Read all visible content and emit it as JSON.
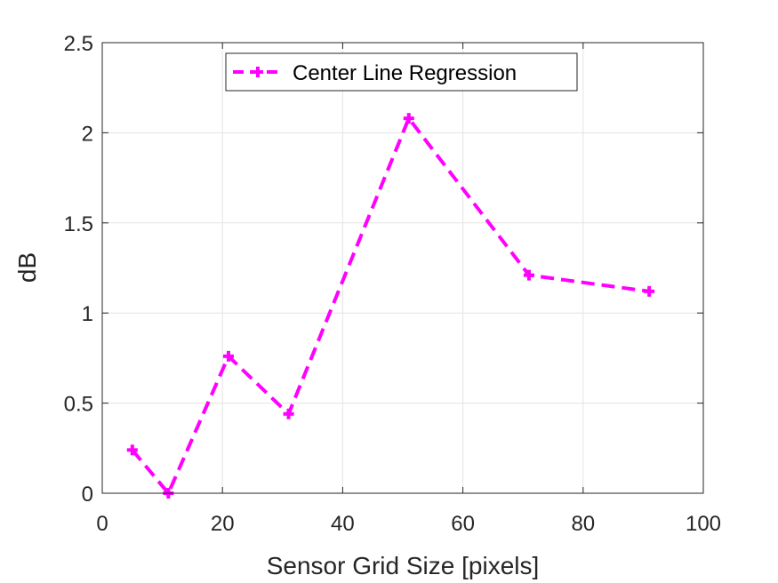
{
  "chart_data": {
    "type": "line",
    "title": "",
    "xlabel": "Sensor Grid Size [pixels]",
    "ylabel": "dB",
    "xlim": [
      0,
      100
    ],
    "ylim": [
      0,
      2.5
    ],
    "xticks": [
      0,
      20,
      40,
      60,
      80,
      100
    ],
    "yticks": [
      0,
      0.5,
      1,
      1.5,
      2,
      2.5
    ],
    "xtick_labels": [
      "0",
      "20",
      "40",
      "60",
      "80",
      "100"
    ],
    "ytick_labels": [
      "0",
      "0.5",
      "1",
      "1.5",
      "2",
      "2.5"
    ],
    "grid": true,
    "legend_position": "top-center",
    "series": [
      {
        "name": "Center Line Regression",
        "color": "#ff00ff",
        "line_style": "dashed",
        "marker": "plus",
        "x": [
          5,
          11,
          21,
          31,
          51,
          71,
          91
        ],
        "y": [
          0.24,
          0.0,
          0.76,
          0.44,
          2.08,
          1.21,
          1.12
        ]
      }
    ]
  }
}
